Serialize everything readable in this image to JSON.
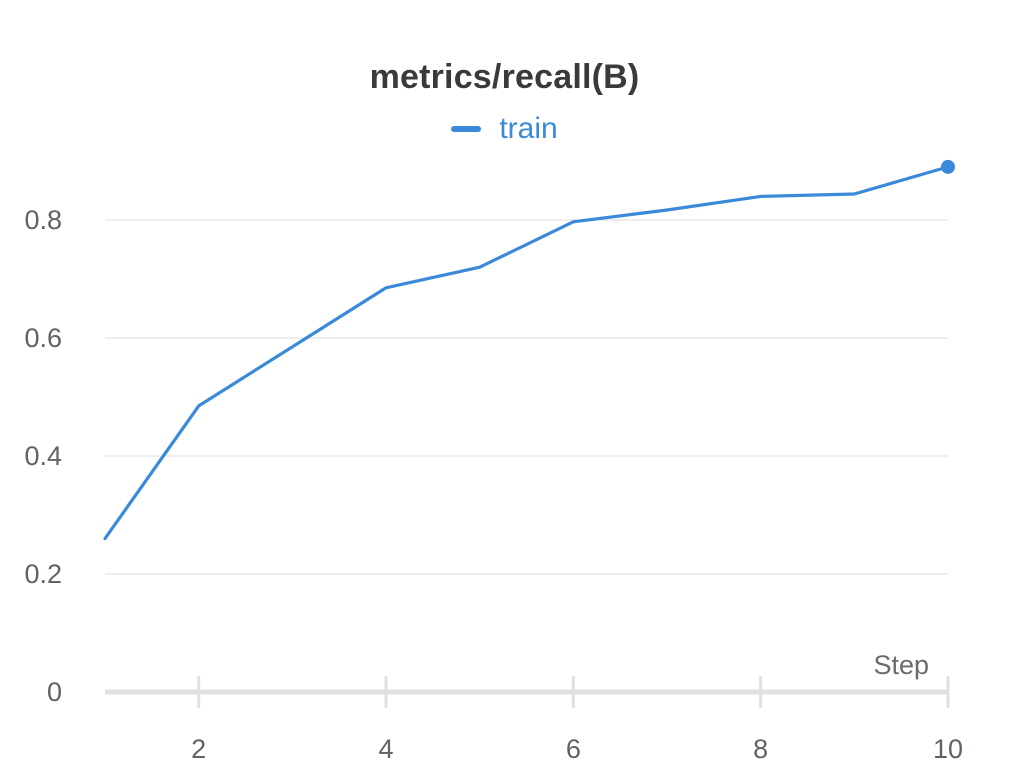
{
  "chart_data": {
    "type": "line",
    "title": "metrics/recall(B)",
    "xlabel": "Step",
    "ylabel": "",
    "xlim": [
      1,
      10
    ],
    "ylim": [
      0,
      0.9
    ],
    "x_ticks": [
      "2",
      "4",
      "6",
      "8",
      "10"
    ],
    "y_ticks": [
      "0",
      "0.2",
      "0.4",
      "0.6",
      "0.8"
    ],
    "grid": true,
    "legend_position": "top-center",
    "series": [
      {
        "name": "train",
        "color": "#3b8ad9",
        "x": [
          1,
          2,
          3,
          4,
          5,
          6,
          7,
          8,
          9,
          10
        ],
        "y": [
          0.26,
          0.485,
          0.585,
          0.685,
          0.72,
          0.797,
          0.817,
          0.84,
          0.844,
          0.89
        ]
      }
    ]
  }
}
